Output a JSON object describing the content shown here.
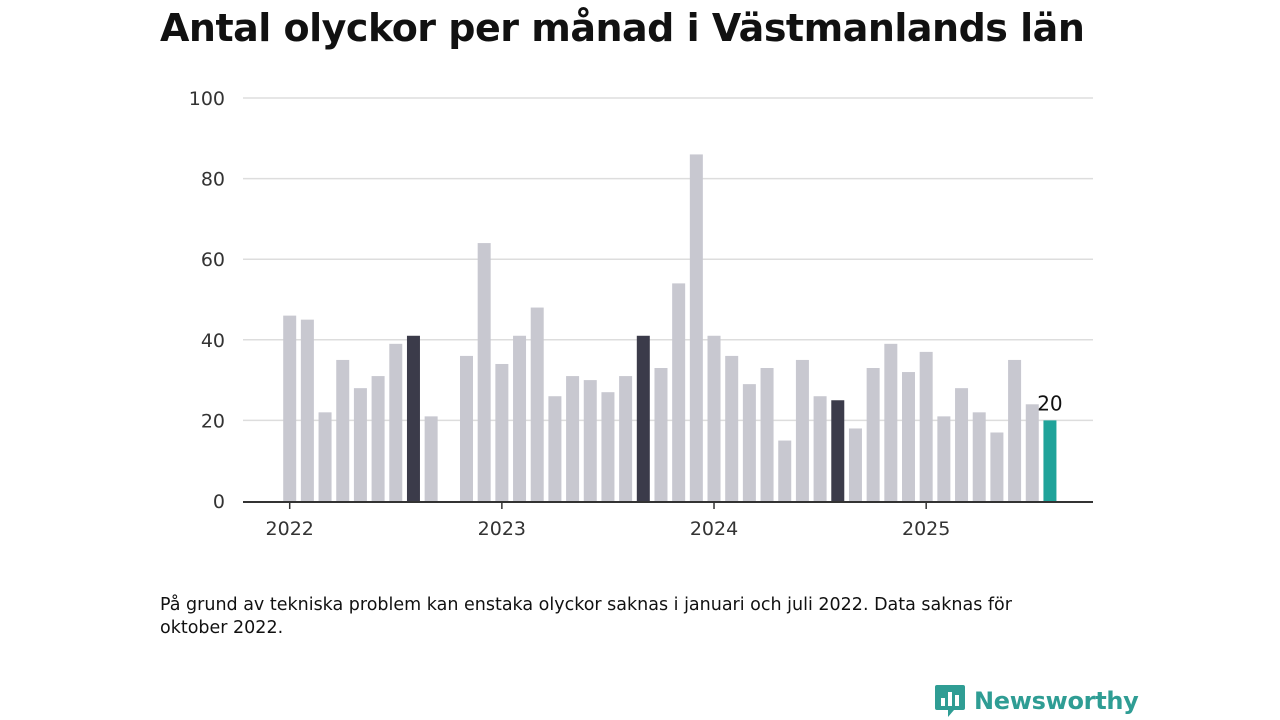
{
  "title": "Antal olyckor per månad i Västmanlands län",
  "footnote": "På grund av tekniska problem kan enstaka olyckor saknas i januari och juli 2022. Data saknas för oktober 2022.",
  "brand": {
    "name": "Newsworthy",
    "icon": "newsworthy-logo-icon"
  },
  "colors": {
    "default_bar": "#c8c8d0",
    "highlight_bar": "#3b3b4a",
    "current_bar": "#1fa39a",
    "grid": "#dddddd",
    "axis": "#333333"
  },
  "chart_data": {
    "type": "bar",
    "ylim": [
      0,
      100
    ],
    "yticks": [
      0,
      20,
      40,
      60,
      80,
      100
    ],
    "xtick_labels": [
      "2022",
      "2023",
      "2024",
      "2025"
    ],
    "grid": true,
    "categories": [
      "2022-01",
      "2022-02",
      "2022-03",
      "2022-04",
      "2022-05",
      "2022-06",
      "2022-07",
      "2022-08",
      "2022-09",
      "2022-10",
      "2022-11",
      "2022-12",
      "2023-01",
      "2023-02",
      "2023-03",
      "2023-04",
      "2023-05",
      "2023-06",
      "2023-07",
      "2023-08",
      "2023-09",
      "2023-10",
      "2023-11",
      "2023-12",
      "2024-01",
      "2024-02",
      "2024-03",
      "2024-04",
      "2024-05",
      "2024-06",
      "2024-07",
      "2024-08",
      "2024-09",
      "2024-10",
      "2024-11",
      "2024-12",
      "2025-01",
      "2025-02",
      "2025-03",
      "2025-04",
      "2025-05",
      "2025-06",
      "2025-07",
      "2025-08"
    ],
    "values": [
      46,
      45,
      22,
      35,
      28,
      31,
      39,
      41,
      21,
      null,
      36,
      64,
      34,
      41,
      48,
      26,
      31,
      30,
      27,
      31,
      41,
      33,
      54,
      86,
      41,
      36,
      29,
      33,
      15,
      35,
      26,
      25,
      18,
      33,
      39,
      32,
      37,
      21,
      28,
      22,
      17,
      35,
      24,
      20
    ],
    "highlighted": [
      "2022-08",
      "2023-09",
      "2024-08"
    ],
    "current": "2025-08",
    "data_labels": [
      {
        "category": "2025-08",
        "text": "20"
      }
    ]
  }
}
